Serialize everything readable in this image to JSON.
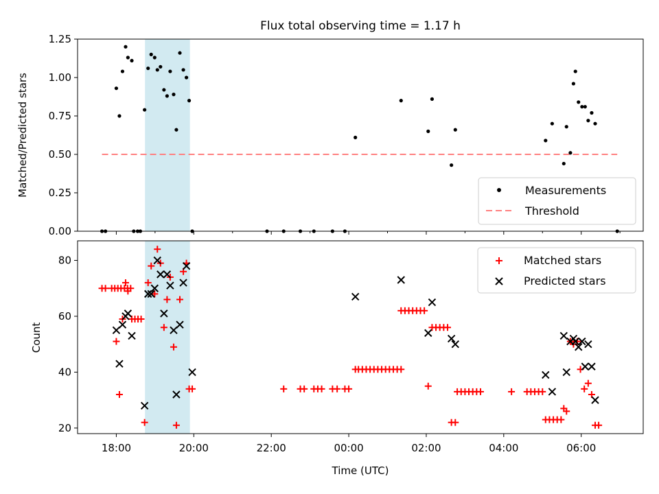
{
  "title": "Flux total observing time = 1.17 h",
  "colors": {
    "measurement": "#000000",
    "threshold": "#ff7f7f",
    "matched": "#ff0000",
    "predicted": "#000000",
    "highlight": "#add8e6"
  },
  "chart_data": [
    {
      "type": "scatter",
      "ylabel": "Matched/Predicted stars",
      "xlim": [
        17.0,
        31.6
      ],
      "ylim": [
        0,
        1.25
      ],
      "yticks": [
        0,
        0.25,
        0.5,
        0.75,
        1.0,
        1.25
      ],
      "ytick_labels": [
        "0.00",
        "0.25",
        "0.50",
        "0.75",
        "1.00",
        "1.25"
      ],
      "threshold": {
        "value": 0.5,
        "x_range": [
          17.63,
          30.93
        ]
      },
      "highlight_span": [
        18.74,
        19.9
      ],
      "legend": {
        "position": "lower-right",
        "entries": [
          "Measurements",
          "Threshold"
        ]
      },
      "series": [
        {
          "name": "Measurements",
          "points": [
            [
              17.63,
              0
            ],
            [
              17.72,
              0
            ],
            [
              18.0,
              0.93
            ],
            [
              18.08,
              0.75
            ],
            [
              18.16,
              1.04
            ],
            [
              18.24,
              1.2
            ],
            [
              18.3,
              1.13
            ],
            [
              18.4,
              1.11
            ],
            [
              18.45,
              0
            ],
            [
              18.55,
              0
            ],
            [
              18.62,
              0
            ],
            [
              18.73,
              0.79
            ],
            [
              18.82,
              1.06
            ],
            [
              18.9,
              1.15
            ],
            [
              18.99,
              1.13
            ],
            [
              19.06,
              1.05
            ],
            [
              19.14,
              1.07
            ],
            [
              19.23,
              0.92
            ],
            [
              19.31,
              0.88
            ],
            [
              19.39,
              1.04
            ],
            [
              19.48,
              0.89
            ],
            [
              19.55,
              0.66
            ],
            [
              19.64,
              1.16
            ],
            [
              19.73,
              1.05
            ],
            [
              19.81,
              1.0
            ],
            [
              19.88,
              0.85
            ],
            [
              19.96,
              0
            ],
            [
              21.89,
              0
            ],
            [
              22.32,
              0
            ],
            [
              22.75,
              0
            ],
            [
              23.1,
              0
            ],
            [
              23.58,
              0
            ],
            [
              23.9,
              0
            ],
            [
              24.17,
              0.61
            ],
            [
              25.35,
              0.85
            ],
            [
              26.05,
              0.65
            ],
            [
              26.15,
              0.86
            ],
            [
              26.65,
              0.43
            ],
            [
              26.75,
              0.66
            ],
            [
              29.08,
              0.59
            ],
            [
              29.25,
              0.7
            ],
            [
              29.55,
              0.44
            ],
            [
              29.62,
              0.68
            ],
            [
              29.72,
              0.51
            ],
            [
              29.8,
              0.96
            ],
            [
              29.85,
              1.04
            ],
            [
              29.93,
              0.84
            ],
            [
              30.02,
              0.81
            ],
            [
              30.1,
              0.81
            ],
            [
              30.18,
              0.72
            ],
            [
              30.27,
              0.77
            ],
            [
              30.36,
              0.7
            ],
            [
              30.93,
              0
            ]
          ]
        }
      ]
    },
    {
      "type": "scatter",
      "ylabel": "Count",
      "xlabel": "Time (UTC)",
      "xlim": [
        17.0,
        31.6
      ],
      "ylim": [
        18,
        87
      ],
      "yticks": [
        20,
        40,
        60,
        80
      ],
      "xticks": [
        18,
        20,
        22,
        24,
        26,
        28,
        30
      ],
      "xtick_labels": [
        "18:00",
        "20:00",
        "22:00",
        "00:00",
        "02:00",
        "04:00",
        "06:00"
      ],
      "highlight_span": [
        18.74,
        19.9
      ],
      "legend": {
        "position": "top-right",
        "entries": [
          "Matched stars",
          "Predicted stars"
        ]
      },
      "series": [
        {
          "name": "Matched stars",
          "points": [
            [
              17.63,
              70
            ],
            [
              17.72,
              70
            ],
            [
              17.88,
              70
            ],
            [
              17.96,
              70
            ],
            [
              18.04,
              70
            ],
            [
              18.12,
              70
            ],
            [
              18.21,
              70
            ],
            [
              18.29,
              70
            ],
            [
              18.37,
              70
            ],
            [
              18.0,
              51
            ],
            [
              18.08,
              32
            ],
            [
              18.16,
              59
            ],
            [
              18.24,
              72
            ],
            [
              18.3,
              69
            ],
            [
              18.4,
              59
            ],
            [
              18.48,
              59
            ],
            [
              18.56,
              59
            ],
            [
              18.64,
              59
            ],
            [
              18.73,
              22
            ],
            [
              18.82,
              72
            ],
            [
              18.9,
              78
            ],
            [
              18.99,
              68
            ],
            [
              19.06,
              84
            ],
            [
              19.14,
              79
            ],
            [
              19.23,
              56
            ],
            [
              19.31,
              66
            ],
            [
              19.39,
              74
            ],
            [
              19.48,
              49
            ],
            [
              19.55,
              21
            ],
            [
              19.64,
              66
            ],
            [
              19.73,
              76
            ],
            [
              19.81,
              79
            ],
            [
              19.88,
              34
            ],
            [
              19.96,
              34
            ],
            [
              22.32,
              34
            ],
            [
              22.75,
              34
            ],
            [
              22.85,
              34
            ],
            [
              23.1,
              34
            ],
            [
              23.2,
              34
            ],
            [
              23.3,
              34
            ],
            [
              23.58,
              34
            ],
            [
              23.7,
              34
            ],
            [
              23.9,
              34
            ],
            [
              24.0,
              34
            ],
            [
              24.17,
              41
            ],
            [
              24.25,
              41
            ],
            [
              24.35,
              41
            ],
            [
              24.45,
              41
            ],
            [
              24.55,
              41
            ],
            [
              24.65,
              41
            ],
            [
              24.75,
              41
            ],
            [
              24.85,
              41
            ],
            [
              24.95,
              41
            ],
            [
              25.05,
              41
            ],
            [
              25.15,
              41
            ],
            [
              25.25,
              41
            ],
            [
              25.35,
              41
            ],
            [
              25.35,
              62
            ],
            [
              25.45,
              62
            ],
            [
              25.55,
              62
            ],
            [
              25.65,
              62
            ],
            [
              25.75,
              62
            ],
            [
              25.85,
              62
            ],
            [
              25.95,
              62
            ],
            [
              26.05,
              35
            ],
            [
              26.15,
              56
            ],
            [
              26.25,
              56
            ],
            [
              26.35,
              56
            ],
            [
              26.45,
              56
            ],
            [
              26.55,
              56
            ],
            [
              26.65,
              22
            ],
            [
              26.75,
              22
            ],
            [
              26.8,
              33
            ],
            [
              26.9,
              33
            ],
            [
              27.0,
              33
            ],
            [
              27.1,
              33
            ],
            [
              27.2,
              33
            ],
            [
              27.3,
              33
            ],
            [
              27.4,
              33
            ],
            [
              28.2,
              33
            ],
            [
              28.6,
              33
            ],
            [
              28.7,
              33
            ],
            [
              28.8,
              33
            ],
            [
              28.9,
              33
            ],
            [
              29.0,
              33
            ],
            [
              29.08,
              23
            ],
            [
              29.18,
              23
            ],
            [
              29.28,
              23
            ],
            [
              29.38,
              23
            ],
            [
              29.48,
              23
            ],
            [
              29.55,
              27
            ],
            [
              29.62,
              26
            ],
            [
              29.72,
              51
            ],
            [
              29.8,
              50
            ],
            [
              29.9,
              51
            ],
            [
              29.98,
              41
            ],
            [
              30.08,
              34
            ],
            [
              30.18,
              36
            ],
            [
              30.27,
              32
            ],
            [
              30.36,
              21
            ],
            [
              30.45,
              21
            ]
          ]
        },
        {
          "name": "Predicted stars",
          "points": [
            [
              18.0,
              55
            ],
            [
              18.08,
              43
            ],
            [
              18.16,
              57
            ],
            [
              18.24,
              60
            ],
            [
              18.3,
              61
            ],
            [
              18.4,
              53
            ],
            [
              18.73,
              28
            ],
            [
              18.82,
              68
            ],
            [
              18.9,
              68
            ],
            [
              18.99,
              70
            ],
            [
              19.06,
              80
            ],
            [
              19.14,
              75
            ],
            [
              19.23,
              61
            ],
            [
              19.31,
              75
            ],
            [
              19.39,
              71
            ],
            [
              19.48,
              55
            ],
            [
              19.55,
              32
            ],
            [
              19.64,
              57
            ],
            [
              19.73,
              72
            ],
            [
              19.81,
              78
            ],
            [
              19.96,
              40
            ],
            [
              24.17,
              67
            ],
            [
              25.35,
              73
            ],
            [
              26.05,
              54
            ],
            [
              26.15,
              65
            ],
            [
              26.65,
              52
            ],
            [
              26.75,
              50
            ],
            [
              29.08,
              39
            ],
            [
              29.25,
              33
            ],
            [
              29.55,
              53
            ],
            [
              29.62,
              40
            ],
            [
              29.72,
              51
            ],
            [
              29.8,
              52
            ],
            [
              29.85,
              51
            ],
            [
              29.93,
              49
            ],
            [
              30.02,
              51
            ],
            [
              30.1,
              42
            ],
            [
              30.18,
              50
            ],
            [
              30.27,
              42
            ],
            [
              30.36,
              30
            ]
          ]
        }
      ]
    }
  ]
}
